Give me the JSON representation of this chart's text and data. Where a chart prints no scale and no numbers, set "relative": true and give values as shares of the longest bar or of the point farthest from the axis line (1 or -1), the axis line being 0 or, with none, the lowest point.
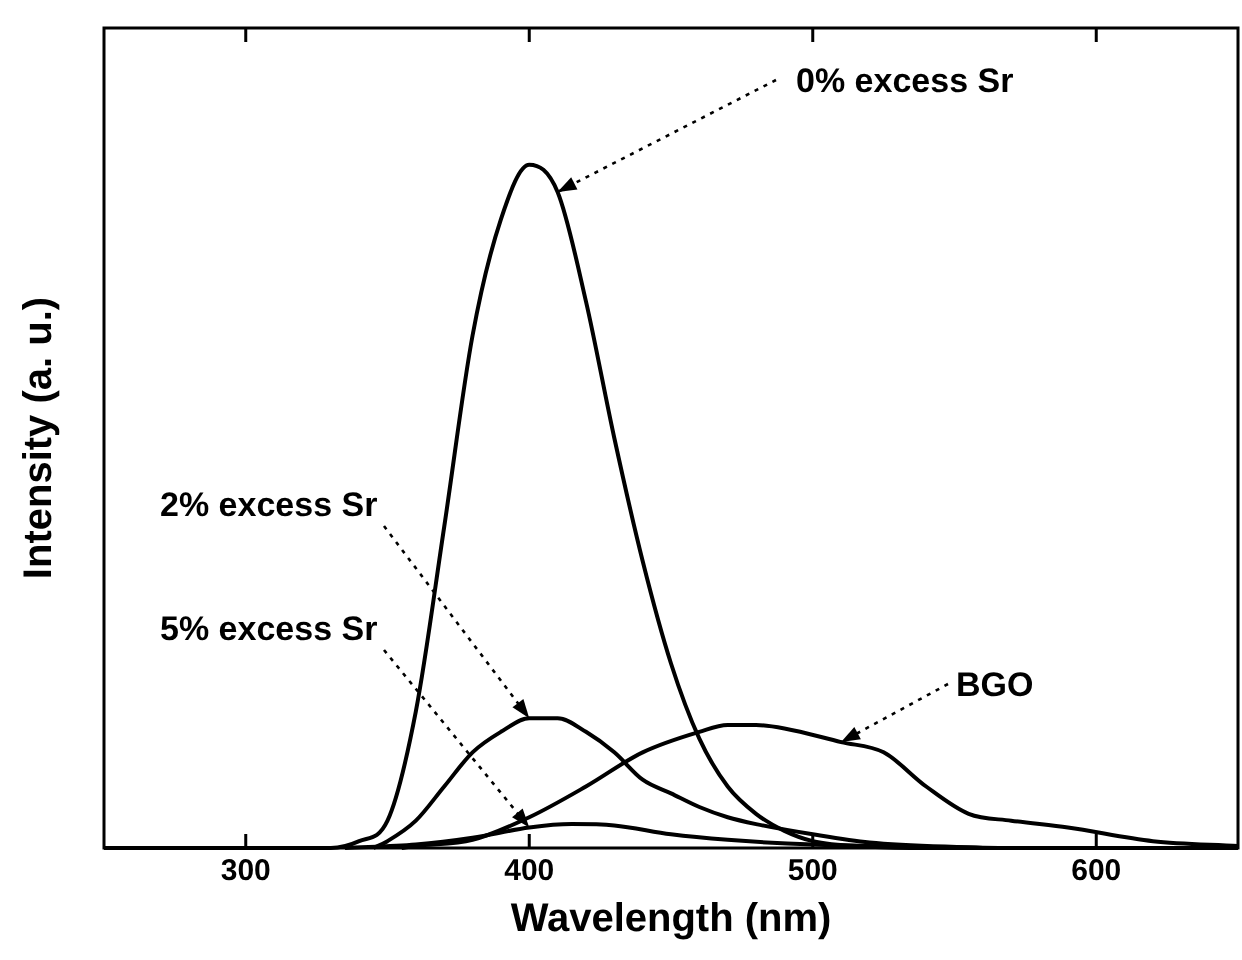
{
  "chart_data": {
    "type": "line",
    "xlabel": "Wavelength (nm)",
    "ylabel": "Intensity (a. u.)",
    "relative": true,
    "xlim": [
      250,
      650
    ],
    "xticks": [
      300,
      400,
      500,
      600
    ],
    "grid": false,
    "marker": "none",
    "line_style": "solid",
    "annotations": [
      {
        "text": "0% excess Sr",
        "x": 410,
        "y": 0.96
      },
      {
        "text": "2% excess Sr",
        "x": 400,
        "y": 0.19
      },
      {
        "text": "5% excess Sr",
        "x": 400,
        "y": 0.03
      },
      {
        "text": "BGO",
        "x": 510,
        "y": 0.155
      }
    ],
    "series": [
      {
        "color": "#000000",
        "x": [
          250,
          330,
          340,
          350,
          360,
          370,
          380,
          390,
          400,
          410,
          420,
          430,
          440,
          450,
          460,
          470,
          480,
          490,
          500,
          520,
          540,
          650
        ],
        "values": [
          0,
          0,
          0.01,
          0.04,
          0.2,
          0.47,
          0.75,
          0.92,
          1.0,
          0.96,
          0.8,
          0.6,
          0.42,
          0.27,
          0.16,
          0.09,
          0.05,
          0.025,
          0.01,
          0.002,
          0,
          0
        ]
      },
      {
        "color": "#000000",
        "x": [
          345,
          350,
          360,
          370,
          380,
          390,
          400,
          410,
          420,
          430,
          440,
          450,
          460,
          470,
          480,
          500,
          520,
          560
        ],
        "values": [
          0,
          0.01,
          0.04,
          0.09,
          0.14,
          0.17,
          0.19,
          0.19,
          0.17,
          0.14,
          0.1,
          0.08,
          0.06,
          0.045,
          0.035,
          0.02,
          0.008,
          0
        ]
      },
      {
        "color": "#000000",
        "x": [
          335,
          360,
          380,
          400,
          415,
          430,
          450,
          470,
          500,
          570
        ],
        "values": [
          0,
          0.005,
          0.015,
          0.03,
          0.035,
          0.033,
          0.02,
          0.012,
          0.005,
          0
        ]
      },
      {
        "color": "#000000",
        "x": [
          355,
          360,
          380,
          400,
          420,
          440,
          460,
          470,
          480,
          490,
          510,
          525,
          540,
          555,
          570,
          590,
          620,
          650
        ],
        "values": [
          0,
          0.003,
          0.012,
          0.045,
          0.09,
          0.14,
          0.17,
          0.18,
          0.18,
          0.175,
          0.155,
          0.14,
          0.09,
          0.05,
          0.04,
          0.03,
          0.01,
          0.003
        ]
      }
    ]
  }
}
